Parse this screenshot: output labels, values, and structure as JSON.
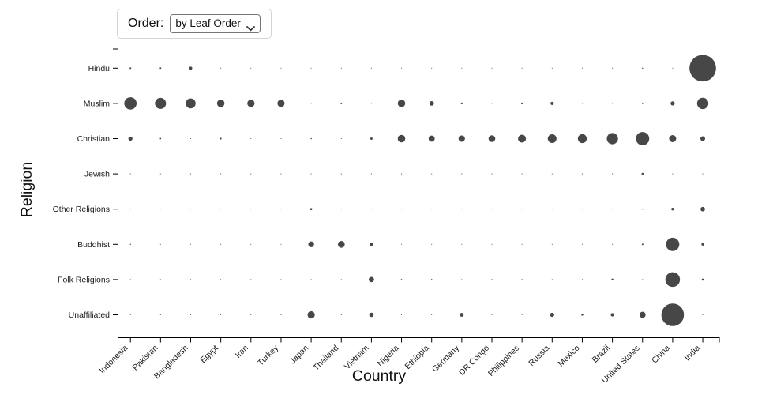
{
  "controls": {
    "order_label": "Order:",
    "order_select": {
      "value": "by Leaf Order",
      "options": [
        "by Leaf Order"
      ]
    }
  },
  "chart_data": {
    "type": "scatter",
    "subtype": "bubble-matrix",
    "title": "",
    "xlabel": "Country",
    "ylabel": "Religion",
    "sort_order": "by Leaf Order",
    "dot_color": "#474747",
    "size_scale": "radius_px = 0.54 * sqrt(value_millions), min 0.55",
    "x_categories": [
      "Indonesia",
      "Pakistan",
      "Bangladesh",
      "Egypt",
      "Iran",
      "Turkey",
      "Japan",
      "Thailand",
      "Vietnam",
      "Nigeria",
      "Ethiopia",
      "Germany",
      "DR Congo",
      "Philippines",
      "Russia",
      "Mexico",
      "Brazil",
      "United States",
      "China",
      "India"
    ],
    "y_categories": [
      "Hindu",
      "Muslim",
      "Christian",
      "Jewish",
      "Other Religions",
      "Buddhist",
      "Folk Religions",
      "Unaffiliated"
    ],
    "series": [
      {
        "name": "Hindu",
        "values": [
          4.05,
          3.33,
          13.47,
          0.01,
          0.01,
          0.01,
          0.03,
          0.07,
          0.05,
          0.01,
          0.01,
          0.08,
          0.01,
          0.01,
          0.05,
          0.01,
          0.01,
          1.79,
          0.03,
          973.75
        ]
      },
      {
        "name": "Muslim",
        "values": [
          209.12,
          167.41,
          134.43,
          76.99,
          73.57,
          71.33,
          0.19,
          3.8,
          0.16,
          77.3,
          28.68,
          4.76,
          0.97,
          4.74,
          14.29,
          0.01,
          0.04,
          2.77,
          23.31,
          176.2
        ]
      },
      {
        "name": "Christian",
        "values": [
          23.66,
          2.75,
          0.45,
          4.14,
          0.2,
          0.29,
          2.02,
          0.62,
          7.21,
          78.05,
          52.07,
          56.54,
          63.21,
          86.37,
          104.75,
          107.73,
          172.88,
          243.06,
          68.41,
          31.13
        ]
      },
      {
        "name": "Jewish",
        "values": [
          0.01,
          0.01,
          0.01,
          0.01,
          0.01,
          0.02,
          0.01,
          0.01,
          0.01,
          0.01,
          0.01,
          0.25,
          0.01,
          0.01,
          0.29,
          0.07,
          0.11,
          5.69,
          0.01,
          0.01
        ]
      },
      {
        "name": "Other Religions",
        "values": [
          0.24,
          0.02,
          0.15,
          0.01,
          0.22,
          0.06,
          5.94,
          0.07,
          0.44,
          0.16,
          0.08,
          0.08,
          0.26,
          0.65,
          0.14,
          0.23,
          0.58,
          1.86,
          9.39,
          27.55
        ]
      },
      {
        "name": "Buddhist",
        "values": [
          1.68,
          0.02,
          0.74,
          0.01,
          0.01,
          0.04,
          45.8,
          64.42,
          14.38,
          0.01,
          0.01,
          0.25,
          0.01,
          0.01,
          0.14,
          0.01,
          0.25,
          3.57,
          244.13,
          9.25
        ]
      },
      {
        "name": "Folk Religions",
        "values": [
          0.72,
          0.03,
          0.6,
          0.01,
          0.01,
          0.04,
          0.51,
          0.07,
          39.75,
          2.22,
          2.16,
          0.08,
          1.19,
          1.4,
          0.29,
          0.11,
          5.46,
          0.62,
          294.32,
          5.84
        ]
      },
      {
        "name": "Unaffiliated",
        "values": [
          0.24,
          0.02,
          0.15,
          0.04,
          0.04,
          0.87,
          72.12,
          0.21,
          26.0,
          0.63,
          0.08,
          20.33,
          0.07,
          0.07,
          23.18,
          5.22,
          15.41,
          50.98,
          700.68,
          0.87
        ]
      }
    ]
  }
}
